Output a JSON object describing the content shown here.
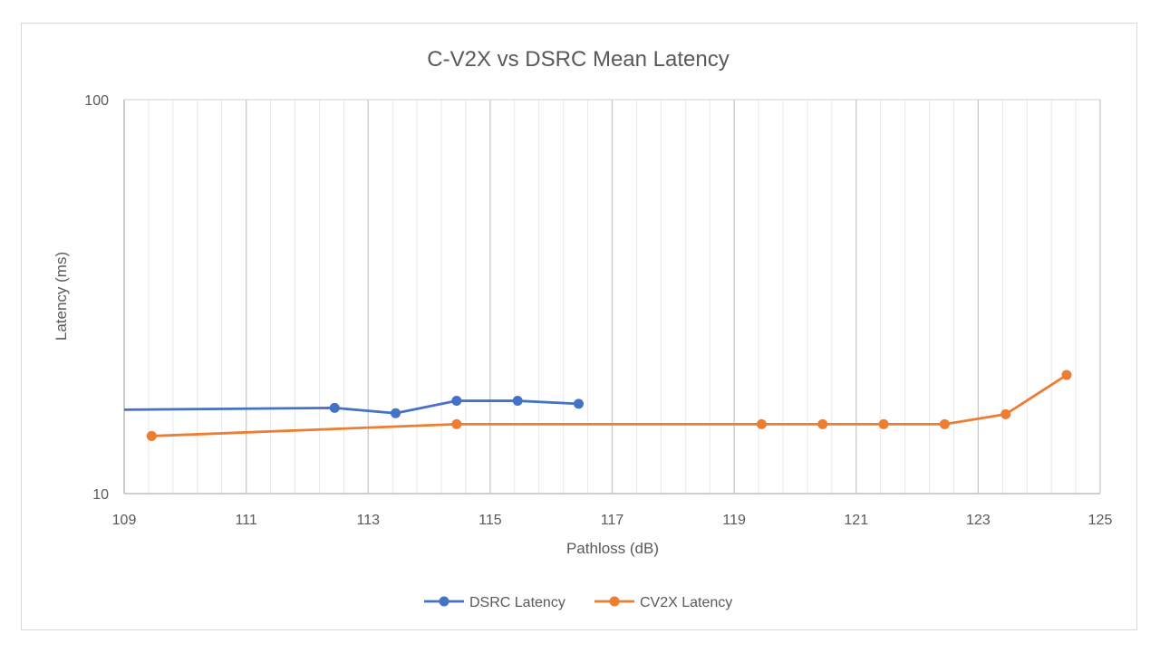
{
  "chart_data": {
    "type": "line",
    "title": "C-V2X vs DSRC Mean  Latency",
    "xlabel": "Pathloss (dB)",
    "ylabel": "Latency  (ms)",
    "xlim": [
      109,
      125
    ],
    "ylim": [
      10,
      100
    ],
    "yscale": "log",
    "x_ticks": [
      "109",
      "111",
      "113",
      "115",
      "117",
      "119",
      "121",
      "123",
      "125"
    ],
    "y_ticks": [
      "10",
      "100"
    ],
    "grid": {
      "vertical_major": true,
      "vertical_minor": true,
      "horizontal": false
    },
    "legend_position": "bottom",
    "series": [
      {
        "name": "DSRC Latency",
        "color": "#4472c4",
        "x": [
          108.45,
          112.45,
          113.45,
          114.45,
          115.45,
          116.45
        ],
        "y": [
          16.3,
          16.5,
          16.0,
          17.2,
          17.2,
          16.9
        ]
      },
      {
        "name": "CV2X Latency",
        "color": "#ed7d31",
        "x": [
          109.45,
          114.45,
          119.45,
          120.45,
          121.45,
          122.45,
          123.45,
          124.45
        ],
        "y": [
          14.0,
          15.0,
          15.0,
          15.0,
          15.0,
          15.0,
          15.9,
          20.0
        ]
      }
    ]
  }
}
